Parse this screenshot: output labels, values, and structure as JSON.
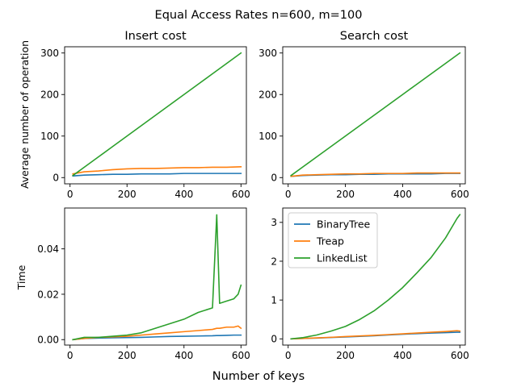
{
  "suptitle": "Equal Access Rates n=600, m=100",
  "xlabel": "Number of keys",
  "colors": {
    "BinaryTree": "#1f77b4",
    "Treap": "#ff7f0e",
    "LinkedList": "#2ca02c"
  },
  "chart_data": [
    {
      "id": "insert-cost",
      "type": "line",
      "title": "Insert cost",
      "ylabel": "Average number of operation",
      "xlim": [
        -19,
        619
      ],
      "ylim": [
        -15,
        315
      ],
      "xticks": [
        0,
        200,
        400,
        600
      ],
      "yticks": [
        0,
        100,
        200,
        300
      ],
      "ytick_labels": [
        "0",
        "100",
        "200",
        "300"
      ],
      "x": [
        10,
        50,
        100,
        150,
        200,
        250,
        300,
        350,
        400,
        450,
        500,
        550,
        600
      ],
      "series": [
        {
          "name": "BinaryTree",
          "values": [
            4,
            6,
            7,
            8,
            8,
            9,
            9,
            9,
            10,
            10,
            10,
            10,
            10
          ]
        },
        {
          "name": "Treap",
          "values": [
            9,
            14,
            16,
            19,
            21,
            22,
            22,
            23,
            24,
            24,
            25,
            25,
            26
          ]
        },
        {
          "name": "LinkedList",
          "values": [
            5,
            25,
            50,
            75,
            100,
            125,
            150,
            175,
            200,
            225,
            250,
            275,
            300
          ]
        }
      ]
    },
    {
      "id": "search-cost",
      "type": "line",
      "title": "Search cost",
      "ylabel": "",
      "xlim": [
        -19,
        619
      ],
      "ylim": [
        -15,
        315
      ],
      "xticks": [
        0,
        200,
        400,
        600
      ],
      "yticks": [
        0,
        100,
        200,
        300
      ],
      "ytick_labels": [
        "0",
        "100",
        "200",
        "300"
      ],
      "x": [
        10,
        50,
        100,
        150,
        200,
        250,
        300,
        350,
        400,
        450,
        500,
        550,
        600
      ],
      "series": [
        {
          "name": "BinaryTree",
          "values": [
            3,
            5,
            6,
            7,
            7,
            8,
            8,
            9,
            9,
            9,
            9,
            10,
            10
          ]
        },
        {
          "name": "Treap",
          "values": [
            3,
            6,
            7,
            8,
            9,
            9,
            10,
            10,
            10,
            11,
            11,
            11,
            11
          ]
        },
        {
          "name": "LinkedList",
          "values": [
            5,
            25,
            50,
            75,
            100,
            125,
            150,
            175,
            200,
            225,
            250,
            275,
            300
          ]
        }
      ]
    },
    {
      "id": "insert-time",
      "type": "line",
      "title": "",
      "ylabel": "Time",
      "xlim": [
        -19,
        619
      ],
      "ylim": [
        -0.0024,
        0.058
      ],
      "xticks": [
        0,
        200,
        400,
        600
      ],
      "yticks": [
        0,
        0.02,
        0.04
      ],
      "ytick_labels": [
        "0.00",
        "0.02",
        "0.04"
      ],
      "x": [
        10,
        50,
        100,
        150,
        200,
        250,
        300,
        350,
        400,
        450,
        500,
        515,
        525,
        550,
        575,
        590,
        600
      ],
      "series": [
        {
          "name": "BinaryTree",
          "values": [
            0.0,
            0.0005,
            0.0007,
            0.0008,
            0.0009,
            0.001,
            0.0012,
            0.0014,
            0.0015,
            0.0016,
            0.0017,
            0.0018,
            0.0018,
            0.0019,
            0.002,
            0.002,
            0.002
          ]
        },
        {
          "name": "Treap",
          "values": [
            0.0,
            0.0005,
            0.001,
            0.0012,
            0.0015,
            0.002,
            0.0025,
            0.003,
            0.0035,
            0.004,
            0.0045,
            0.005,
            0.005,
            0.0055,
            0.0055,
            0.006,
            0.005
          ]
        },
        {
          "name": "LinkedList",
          "values": [
            0.0,
            0.001,
            0.001,
            0.0015,
            0.002,
            0.003,
            0.005,
            0.007,
            0.009,
            0.012,
            0.014,
            0.055,
            0.016,
            0.017,
            0.018,
            0.02,
            0.024
          ]
        }
      ]
    },
    {
      "id": "search-time",
      "type": "line",
      "title": "",
      "ylabel": "",
      "xlim": [
        -19,
        619
      ],
      "ylim": [
        -0.16,
        3.37
      ],
      "xticks": [
        0,
        200,
        400,
        600
      ],
      "yticks": [
        0,
        1,
        2,
        3
      ],
      "ytick_labels": [
        "0",
        "1",
        "2",
        "3"
      ],
      "legend": "upper-left",
      "x": [
        10,
        50,
        100,
        150,
        200,
        250,
        300,
        350,
        400,
        450,
        500,
        550,
        590,
        600
      ],
      "series": [
        {
          "name": "BinaryTree",
          "values": [
            0.0,
            0.01,
            0.02,
            0.035,
            0.05,
            0.065,
            0.08,
            0.1,
            0.12,
            0.135,
            0.15,
            0.16,
            0.17,
            0.17
          ]
        },
        {
          "name": "Treap",
          "values": [
            0.0,
            0.01,
            0.025,
            0.04,
            0.06,
            0.075,
            0.09,
            0.11,
            0.13,
            0.15,
            0.17,
            0.19,
            0.21,
            0.2
          ]
        },
        {
          "name": "LinkedList",
          "values": [
            0.0,
            0.03,
            0.1,
            0.2,
            0.32,
            0.5,
            0.72,
            1.0,
            1.32,
            1.7,
            2.1,
            2.6,
            3.1,
            3.2
          ]
        }
      ]
    }
  ]
}
